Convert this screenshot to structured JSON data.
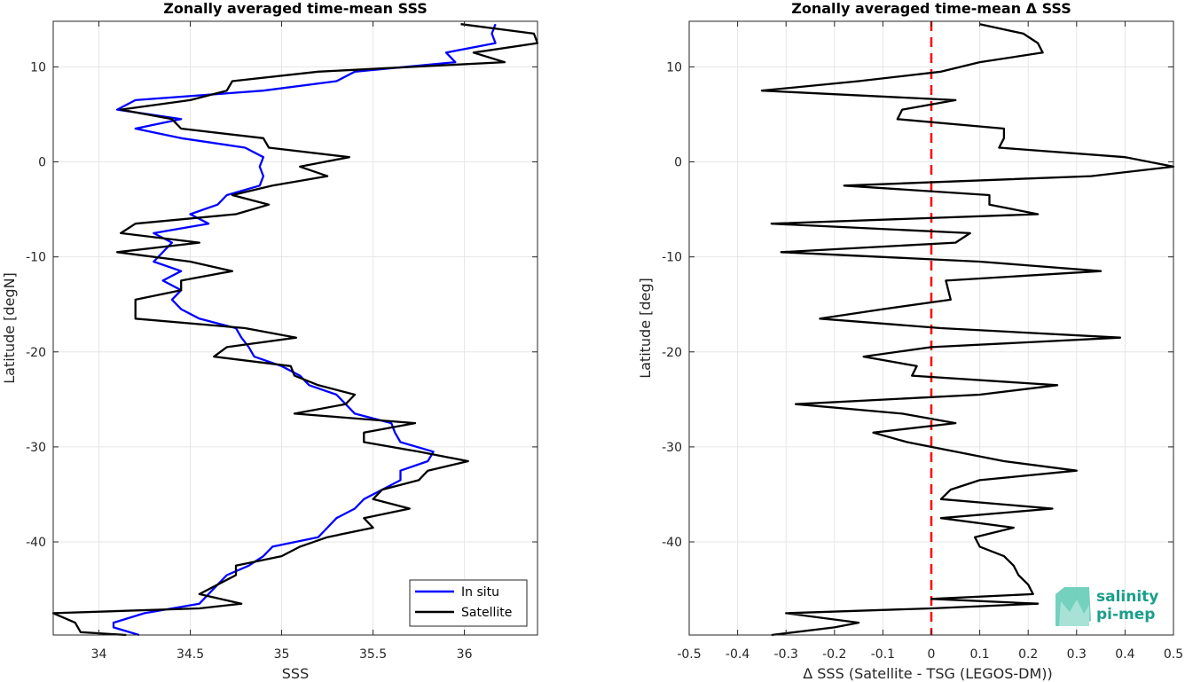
{
  "chart_data": [
    {
      "type": "line",
      "title": "Zonally averaged time-mean SSS",
      "xlabel": "SSS",
      "ylabel": "Latitude [degN]",
      "xlim": [
        33.75,
        36.4
      ],
      "ylim": [
        -49.8,
        14.8
      ],
      "xticks": [
        34,
        34.5,
        35,
        35.5,
        36
      ],
      "xtick_labels": [
        "34",
        "34.5",
        "35",
        "35.5",
        "36"
      ],
      "yticks": [
        -40,
        -30,
        -20,
        -10,
        0,
        10
      ],
      "ytick_labels": [
        "-40",
        "-30",
        "-20",
        "-10",
        "0",
        "10"
      ],
      "grid": true,
      "legend": "bottom-right",
      "series": [
        {
          "name": "In situ",
          "color": "#0000ff",
          "points": [
            [
              36.17,
              14.5
            ],
            [
              36.15,
              13.5
            ],
            [
              36.17,
              12.5
            ],
            [
              35.9,
              11.5
            ],
            [
              35.95,
              10.5
            ],
            [
              35.4,
              9.5
            ],
            [
              35.3,
              8.5
            ],
            [
              34.9,
              7.5
            ],
            [
              34.2,
              6.5
            ],
            [
              34.1,
              5.5
            ],
            [
              34.45,
              4.5
            ],
            [
              34.2,
              3.5
            ],
            [
              34.45,
              2.5
            ],
            [
              34.8,
              1.5
            ],
            [
              34.9,
              0.5
            ],
            [
              34.88,
              -0.5
            ],
            [
              34.9,
              -1.5
            ],
            [
              34.88,
              -2.5
            ],
            [
              34.7,
              -3.5
            ],
            [
              34.65,
              -4.5
            ],
            [
              34.5,
              -5.5
            ],
            [
              34.6,
              -6.5
            ],
            [
              34.3,
              -7.5
            ],
            [
              34.4,
              -8.5
            ],
            [
              34.35,
              -9.5
            ],
            [
              34.3,
              -10.5
            ],
            [
              34.45,
              -11.5
            ],
            [
              34.35,
              -12.5
            ],
            [
              34.45,
              -13.5
            ],
            [
              34.4,
              -14.5
            ],
            [
              34.45,
              -15.5
            ],
            [
              34.55,
              -16.5
            ],
            [
              34.75,
              -17.5
            ],
            [
              34.78,
              -18.5
            ],
            [
              34.82,
              -19.5
            ],
            [
              34.85,
              -20.5
            ],
            [
              35.0,
              -21.5
            ],
            [
              35.1,
              -22.5
            ],
            [
              35.15,
              -23.5
            ],
            [
              35.3,
              -24.5
            ],
            [
              35.35,
              -25.5
            ],
            [
              35.4,
              -26.5
            ],
            [
              35.6,
              -27.5
            ],
            [
              35.62,
              -28.5
            ],
            [
              35.65,
              -29.5
            ],
            [
              35.83,
              -30.5
            ],
            [
              35.8,
              -31.5
            ],
            [
              35.65,
              -32.5
            ],
            [
              35.65,
              -33.5
            ],
            [
              35.55,
              -34.5
            ],
            [
              35.45,
              -35.5
            ],
            [
              35.4,
              -36.5
            ],
            [
              35.3,
              -37.5
            ],
            [
              35.25,
              -38.5
            ],
            [
              35.2,
              -39.5
            ],
            [
              34.95,
              -40.5
            ],
            [
              34.9,
              -41.5
            ],
            [
              34.82,
              -42.5
            ],
            [
              34.7,
              -43.5
            ],
            [
              34.65,
              -44.5
            ],
            [
              34.6,
              -45.5
            ],
            [
              34.55,
              -46.5
            ],
            [
              34.25,
              -47.5
            ],
            [
              34.08,
              -48.5
            ],
            [
              34.08,
              -49.0
            ],
            [
              34.22,
              -49.8
            ]
          ]
        },
        {
          "name": "Satellite",
          "color": "#000000",
          "points": [
            [
              35.98,
              14.5
            ],
            [
              36.38,
              13.5
            ],
            [
              36.4,
              12.5
            ],
            [
              36.05,
              11.5
            ],
            [
              36.22,
              10.5
            ],
            [
              35.2,
              9.5
            ],
            [
              34.73,
              8.5
            ],
            [
              34.7,
              7.5
            ],
            [
              34.5,
              6.5
            ],
            [
              34.12,
              5.5
            ],
            [
              34.4,
              4.5
            ],
            [
              34.45,
              3.5
            ],
            [
              34.9,
              2.5
            ],
            [
              34.93,
              1.5
            ],
            [
              35.37,
              0.5
            ],
            [
              35.1,
              -0.5
            ],
            [
              35.25,
              -1.5
            ],
            [
              34.95,
              -2.5
            ],
            [
              34.73,
              -3.5
            ],
            [
              34.93,
              -4.5
            ],
            [
              34.75,
              -5.5
            ],
            [
              34.2,
              -6.5
            ],
            [
              34.12,
              -7.5
            ],
            [
              34.55,
              -8.5
            ],
            [
              34.1,
              -9.5
            ],
            [
              34.5,
              -10.5
            ],
            [
              34.73,
              -11.5
            ],
            [
              34.45,
              -12.5
            ],
            [
              34.45,
              -13.5
            ],
            [
              34.2,
              -14.5
            ],
            [
              34.2,
              -15.5
            ],
            [
              34.2,
              -16.5
            ],
            [
              34.8,
              -17.5
            ],
            [
              35.08,
              -18.5
            ],
            [
              34.7,
              -19.5
            ],
            [
              34.63,
              -20.5
            ],
            [
              35.05,
              -21.5
            ],
            [
              35.07,
              -22.5
            ],
            [
              35.2,
              -23.5
            ],
            [
              35.4,
              -24.5
            ],
            [
              35.35,
              -25.5
            ],
            [
              35.07,
              -26.5
            ],
            [
              35.73,
              -27.5
            ],
            [
              35.45,
              -28.5
            ],
            [
              35.45,
              -29.5
            ],
            [
              35.75,
              -30.5
            ],
            [
              36.02,
              -31.5
            ],
            [
              35.8,
              -32.5
            ],
            [
              35.75,
              -33.5
            ],
            [
              35.55,
              -34.5
            ],
            [
              35.5,
              -35.5
            ],
            [
              35.7,
              -36.5
            ],
            [
              35.45,
              -37.5
            ],
            [
              35.5,
              -38.5
            ],
            [
              35.25,
              -39.5
            ],
            [
              35.1,
              -40.5
            ],
            [
              35.0,
              -41.5
            ],
            [
              34.75,
              -42.5
            ],
            [
              34.75,
              -43.5
            ],
            [
              34.65,
              -44.5
            ],
            [
              34.55,
              -45.5
            ],
            [
              34.78,
              -46.5
            ],
            [
              34.55,
              -47.0
            ],
            [
              33.75,
              -47.5
            ],
            [
              33.87,
              -48.5
            ],
            [
              33.9,
              -49.5
            ],
            [
              34.15,
              -49.8
            ]
          ]
        }
      ]
    },
    {
      "type": "line",
      "title": "Zonally averaged time-mean Δ SSS",
      "xlabel": "Δ SSS (Satellite - TSG (LEGOS-DM))",
      "ylabel": "Latitude [deg]",
      "xlim": [
        -0.5,
        0.5
      ],
      "ylim": [
        -49.8,
        14.8
      ],
      "xticks": [
        -0.5,
        -0.4,
        -0.3,
        -0.2,
        -0.1,
        0,
        0.1,
        0.2,
        0.3,
        0.4,
        0.5
      ],
      "xtick_labels": [
        "-0.5",
        "-0.4",
        "-0.3",
        "-0.2",
        "-0.1",
        "0",
        "0.1",
        "0.2",
        "0.3",
        "0.4",
        "0.5"
      ],
      "yticks": [
        -40,
        -30,
        -20,
        -10,
        0,
        10
      ],
      "ytick_labels": [
        "-40",
        "-30",
        "-20",
        "-10",
        "0",
        "10"
      ],
      "grid": true,
      "reference_line": {
        "x": 0,
        "color": "#ff0000",
        "style": "dashed"
      },
      "series": [
        {
          "name": "",
          "color": "#000000",
          "points": [
            [
              0.1,
              14.5
            ],
            [
              0.19,
              13.5
            ],
            [
              0.22,
              12.5
            ],
            [
              0.23,
              11.5
            ],
            [
              0.1,
              10.5
            ],
            [
              0.02,
              9.5
            ],
            [
              -0.15,
              8.5
            ],
            [
              -0.35,
              7.5
            ],
            [
              0.05,
              6.5
            ],
            [
              -0.06,
              5.5
            ],
            [
              -0.07,
              4.5
            ],
            [
              0.15,
              3.5
            ],
            [
              0.15,
              2.5
            ],
            [
              0.14,
              1.5
            ],
            [
              0.4,
              0.5
            ],
            [
              0.5,
              -0.5
            ],
            [
              0.33,
              -1.5
            ],
            [
              -0.18,
              -2.5
            ],
            [
              0.12,
              -3.5
            ],
            [
              0.12,
              -4.5
            ],
            [
              0.22,
              -5.5
            ],
            [
              -0.33,
              -6.5
            ],
            [
              0.08,
              -7.5
            ],
            [
              0.05,
              -8.5
            ],
            [
              -0.31,
              -9.5
            ],
            [
              0.1,
              -10.5
            ],
            [
              0.35,
              -11.5
            ],
            [
              0.03,
              -12.5
            ],
            [
              0.04,
              -14.5
            ],
            [
              -0.1,
              -15.5
            ],
            [
              -0.23,
              -16.5
            ],
            [
              0.02,
              -17.5
            ],
            [
              0.39,
              -18.5
            ],
            [
              0.0,
              -19.5
            ],
            [
              -0.14,
              -20.5
            ],
            [
              -0.03,
              -21.5
            ],
            [
              -0.04,
              -22.5
            ],
            [
              0.26,
              -23.5
            ],
            [
              0.1,
              -24.5
            ],
            [
              -0.28,
              -25.5
            ],
            [
              -0.06,
              -26.5
            ],
            [
              0.05,
              -27.5
            ],
            [
              -0.12,
              -28.5
            ],
            [
              -0.05,
              -29.5
            ],
            [
              0.05,
              -30.5
            ],
            [
              0.15,
              -31.5
            ],
            [
              0.3,
              -32.5
            ],
            [
              0.1,
              -33.5
            ],
            [
              0.04,
              -34.5
            ],
            [
              0.02,
              -35.5
            ],
            [
              0.25,
              -36.5
            ],
            [
              0.02,
              -37.5
            ],
            [
              0.17,
              -38.5
            ],
            [
              0.09,
              -39.5
            ],
            [
              0.1,
              -40.5
            ],
            [
              0.15,
              -41.5
            ],
            [
              0.17,
              -42.5
            ],
            [
              0.18,
              -43.5
            ],
            [
              0.2,
              -44.5
            ],
            [
              0.21,
              -45.5
            ],
            [
              0.0,
              -46.0
            ],
            [
              0.22,
              -46.5
            ],
            [
              0.0,
              -47.0
            ],
            [
              -0.3,
              -47.5
            ],
            [
              -0.15,
              -48.5
            ],
            [
              -0.2,
              -49.0
            ],
            [
              -0.33,
              -49.8
            ]
          ]
        }
      ]
    }
  ],
  "legend": {
    "items": [
      {
        "label": "In situ",
        "color": "#0000ff"
      },
      {
        "label": "Satellite",
        "color": "#000000"
      }
    ]
  },
  "logo": {
    "line1": "salinity",
    "line2": "pi-mep"
  }
}
